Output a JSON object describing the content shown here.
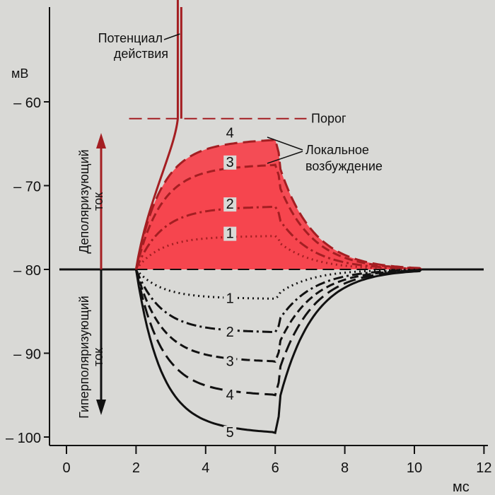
{
  "chart_data": {
    "type": "line",
    "xlabel": "мс",
    "ylabel": "мВ",
    "xlim": [
      0,
      12
    ],
    "ylim": [
      -101,
      -48
    ],
    "x_ticks": [
      "0",
      "2",
      "4",
      "6",
      "8",
      "10",
      "12"
    ],
    "y_ticks": [
      "– 60",
      "– 70",
      "– 80",
      "– 90",
      "– 100"
    ],
    "y_tick_values": [
      -60,
      -70,
      -80,
      -90,
      -100
    ],
    "x_tick_values": [
      0,
      2,
      4,
      6,
      8,
      10,
      12
    ],
    "threshold": -62,
    "resting": -80,
    "colors": {
      "depolarizing": "#a41e22",
      "excitation_fill": "#f5444e",
      "hyperpolarizing": "#111111",
      "background": "#d9d9d6"
    },
    "annotations": {
      "action_potential": [
        "Потенциал",
        "действия"
      ],
      "threshold": "Порог",
      "local_excitation": [
        "Локальное",
        "возбуждение"
      ],
      "depolarizing_current": [
        "Деполяризующий",
        "ток"
      ],
      "hyperpolarizing_current": [
        "Гиперполяризующий",
        "ток"
      ]
    },
    "series": [
      {
        "name": "1",
        "group": "depolarizing",
        "plateau": -76,
        "label": "1",
        "style": "dot"
      },
      {
        "name": "2",
        "group": "depolarizing",
        "plateau": -72.5,
        "label": "2",
        "style": "dashdot"
      },
      {
        "name": "3",
        "group": "depolarizing",
        "plateau": -67.5,
        "label": "3",
        "style": "dash"
      },
      {
        "name": "4",
        "group": "depolarizing",
        "plateau": -64.5,
        "label": "4",
        "style": "longdash"
      },
      {
        "name": "1",
        "group": "hyperpolarizing",
        "plateau": -83.5,
        "label": "1",
        "style": "dot"
      },
      {
        "name": "2",
        "group": "hyperpolarizing",
        "plateau": -87.5,
        "label": "2",
        "style": "dashdot"
      },
      {
        "name": "3",
        "group": "hyperpolarizing",
        "plateau": -91,
        "label": "3",
        "style": "dash"
      },
      {
        "name": "4",
        "group": "hyperpolarizing",
        "plateau": -95,
        "label": "4",
        "style": "longdash"
      },
      {
        "name": "5",
        "group": "hyperpolarizing",
        "plateau": -99.5,
        "label": "5",
        "style": "solid"
      }
    ]
  }
}
